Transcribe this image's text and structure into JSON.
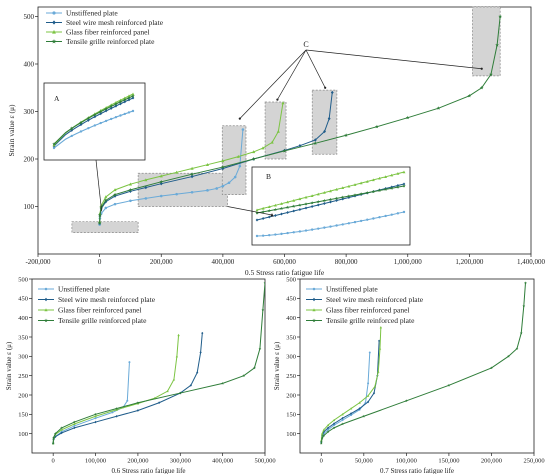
{
  "colors": {
    "unstiffened": "#6aaad8",
    "steel": "#1f5c8a",
    "glass": "#7cc443",
    "tensile": "#2f7d39",
    "highlight_fill": "#d4d4d4",
    "highlight_stroke": "#8a8a8a"
  },
  "chart_data": [
    {
      "type": "line",
      "id": "main",
      "xlabel": "0.5 Stress ratio fatigue life",
      "ylabel": "Strain value ε (μ)",
      "xlim": [
        -200000,
        1400000
      ],
      "ylim": [
        0,
        520
      ],
      "xticks": [
        -200000,
        0,
        200000,
        400000,
        600000,
        800000,
        1000000,
        1200000,
        1400000
      ],
      "xtick_labels": [
        "-200,000",
        "0",
        "200,000",
        "400,000",
        "600,000",
        "800,000",
        "1,000,000",
        "1,200,000",
        "1,400,000"
      ],
      "yticks": [
        100,
        200,
        300,
        400,
        500
      ],
      "ytick_labels": [
        "100",
        "200",
        "300",
        "400",
        "500"
      ],
      "legend_position": "top-left",
      "series": [
        {
          "name": "Unstiffened plate",
          "color_key": "unstiffened",
          "marker": "circle",
          "x": [
            0,
            1000,
            5000,
            20000,
            50000,
            100000,
            150000,
            200000,
            250000,
            300000,
            350000,
            380000,
            400000,
            420000,
            440000,
            455000,
            465000
          ],
          "y": [
            62,
            75,
            85,
            97,
            105,
            112,
            117,
            122,
            126,
            130,
            134,
            138,
            143,
            150,
            162,
            185,
            262
          ]
        },
        {
          "name": "Steel wire mesh reinforced plate",
          "color_key": "steel",
          "marker": "diamond",
          "x": [
            0,
            1000,
            5000,
            20000,
            50000,
            100000,
            150000,
            200000,
            300000,
            400000,
            500000,
            600000,
            650000,
            700000,
            730000,
            745000,
            755000
          ],
          "y": [
            65,
            80,
            95,
            110,
            122,
            132,
            140,
            148,
            163,
            180,
            200,
            218,
            228,
            240,
            258,
            285,
            340
          ]
        },
        {
          "name": "Glass fiber reinforced panel",
          "color_key": "glass",
          "marker": "triangle",
          "x": [
            0,
            1000,
            5000,
            20000,
            50000,
            100000,
            150000,
            200000,
            250000,
            300000,
            350000,
            400000,
            450000,
            500000,
            530000,
            560000,
            580000,
            595000
          ],
          "y": [
            68,
            85,
            102,
            120,
            135,
            147,
            156,
            164,
            172,
            180,
            188,
            196,
            205,
            215,
            223,
            235,
            258,
            318
          ]
        },
        {
          "name": "Tensile grille reinforced plate",
          "color_key": "tensile",
          "marker": "star",
          "x": [
            0,
            1000,
            5000,
            20000,
            50000,
            100000,
            200000,
            300000,
            400000,
            500000,
            600000,
            700000,
            800000,
            900000,
            1000000,
            1100000,
            1200000,
            1240000,
            1270000,
            1290000,
            1300000
          ],
          "y": [
            65,
            82,
            98,
            113,
            125,
            135,
            152,
            168,
            183,
            200,
            217,
            233,
            250,
            268,
            287,
            307,
            333,
            350,
            378,
            440,
            500
          ]
        }
      ],
      "inset_labels": [
        "A",
        "B"
      ],
      "annotation": "C"
    },
    {
      "type": "line",
      "id": "sub06",
      "xlabel": "0.6 Stress ratio fatigue life",
      "ylabel": "Strain value ε (μ)",
      "xlim": [
        -50000,
        500000
      ],
      "ylim": [
        50,
        500
      ],
      "xticks": [
        0,
        100000,
        200000,
        300000,
        400000,
        500000
      ],
      "xtick_labels": [
        "0",
        "100,000",
        "200,000",
        "300,000",
        "400,000",
        "500,000"
      ],
      "yticks": [
        100,
        150,
        200,
        250,
        300,
        350,
        400,
        450,
        500
      ],
      "ytick_labels": [
        "100",
        "150",
        "200",
        "250",
        "300",
        "350",
        "400",
        "450",
        "500"
      ],
      "legend_position": "top-left",
      "series": [
        {
          "name": "Unstiffened plate",
          "color_key": "unstiffened",
          "marker": "circle",
          "x": [
            0,
            1000,
            5000,
            20000,
            50000,
            100000,
            140000,
            165000,
            175000,
            180000
          ],
          "y": [
            75,
            85,
            92,
            105,
            120,
            140,
            155,
            168,
            185,
            285
          ]
        },
        {
          "name": "Steel wire mesh reinforced plate",
          "color_key": "steel",
          "marker": "diamond",
          "x": [
            0,
            1000,
            5000,
            20000,
            50000,
            100000,
            150000,
            200000,
            250000,
            300000,
            325000,
            340000,
            348000,
            352000
          ],
          "y": [
            75,
            85,
            92,
            102,
            115,
            130,
            145,
            160,
            180,
            205,
            225,
            258,
            310,
            360
          ]
        },
        {
          "name": "Glass fiber reinforced panel",
          "color_key": "glass",
          "marker": "triangle",
          "x": [
            0,
            1000,
            5000,
            20000,
            50000,
            100000,
            150000,
            200000,
            240000,
            270000,
            285000,
            292000,
            296000
          ],
          "y": [
            75,
            88,
            98,
            110,
            125,
            145,
            162,
            178,
            192,
            210,
            240,
            300,
            355
          ]
        },
        {
          "name": "Tensile grille reinforced plate",
          "color_key": "tensile",
          "marker": "star",
          "x": [
            0,
            1000,
            5000,
            20000,
            50000,
            100000,
            150000,
            200000,
            300000,
            400000,
            450000,
            475000,
            488000,
            495000,
            500000
          ],
          "y": [
            75,
            90,
            100,
            115,
            130,
            150,
            165,
            180,
            205,
            230,
            250,
            270,
            320,
            420,
            490
          ]
        }
      ]
    },
    {
      "type": "line",
      "id": "sub07",
      "xlabel": "0.7 Stress ratio fatigue life",
      "ylabel": "Strain value ε (μ)",
      "xlim": [
        -25000,
        250000
      ],
      "ylim": [
        50,
        500
      ],
      "xticks": [
        0,
        50000,
        100000,
        150000,
        200000,
        250000
      ],
      "xtick_labels": [
        "0",
        "50,000",
        "100,000",
        "150,000",
        "200,000",
        "250,000"
      ],
      "yticks": [
        100,
        150,
        200,
        250,
        300,
        350,
        400,
        450,
        500
      ],
      "ytick_labels": [
        "100",
        "150",
        "200",
        "250",
        "300",
        "350",
        "400",
        "450",
        "500"
      ],
      "legend_position": "top-left",
      "series": [
        {
          "name": "Unstiffened plate",
          "color_key": "unstiffened",
          "marker": "circle",
          "x": [
            0,
            1000,
            3000,
            8000,
            15000,
            25000,
            35000,
            45000,
            52000,
            55000,
            57000
          ],
          "y": [
            78,
            92,
            100,
            110,
            122,
            135,
            148,
            162,
            180,
            230,
            310
          ]
        },
        {
          "name": "Steel wire mesh reinforced plate",
          "color_key": "steel",
          "marker": "diamond",
          "x": [
            0,
            1000,
            3000,
            8000,
            15000,
            25000,
            35000,
            45000,
            55000,
            62000,
            66000,
            68000
          ],
          "y": [
            80,
            95,
            105,
            115,
            126,
            140,
            152,
            165,
            182,
            205,
            250,
            340
          ]
        },
        {
          "name": "Glass fiber reinforced panel",
          "color_key": "glass",
          "marker": "triangle",
          "x": [
            0,
            1000,
            3000,
            8000,
            15000,
            25000,
            35000,
            45000,
            55000,
            63000,
            67000,
            69000,
            70000
          ],
          "y": [
            82,
            100,
            110,
            122,
            135,
            150,
            165,
            180,
            198,
            222,
            260,
            320,
            375
          ]
        },
        {
          "name": "Tensile grille reinforced plate",
          "color_key": "tensile",
          "marker": "star",
          "x": [
            0,
            1000,
            3000,
            8000,
            15000,
            25000,
            50000,
            100000,
            150000,
            200000,
            220000,
            230000,
            235000,
            238000,
            240000
          ],
          "y": [
            75,
            88,
            95,
            105,
            115,
            125,
            145,
            185,
            225,
            270,
            300,
            320,
            360,
            430,
            490
          ]
        }
      ]
    }
  ]
}
